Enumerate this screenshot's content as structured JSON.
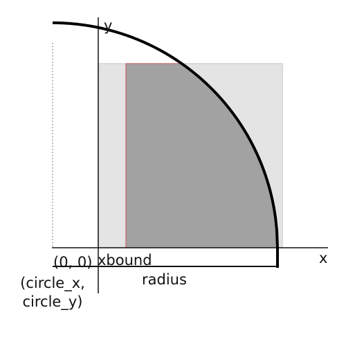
{
  "labels": {
    "axis_x": "x",
    "axis_y": "y",
    "origin": "(0, 0)",
    "xbound": "xbound",
    "radius": "radius",
    "center_line1": "(circle_x,",
    "center_line2": "circle_y)"
  },
  "colors": {
    "background": "#ffffff",
    "axis": "#111111",
    "arc": "#000000",
    "light_rect": "#e4e4e4",
    "light_rect_stroke": "#d2d2d2",
    "shaded_region": "#a2a2a2",
    "bound_line": "#c87878",
    "dotted_line": "#555555"
  }
}
